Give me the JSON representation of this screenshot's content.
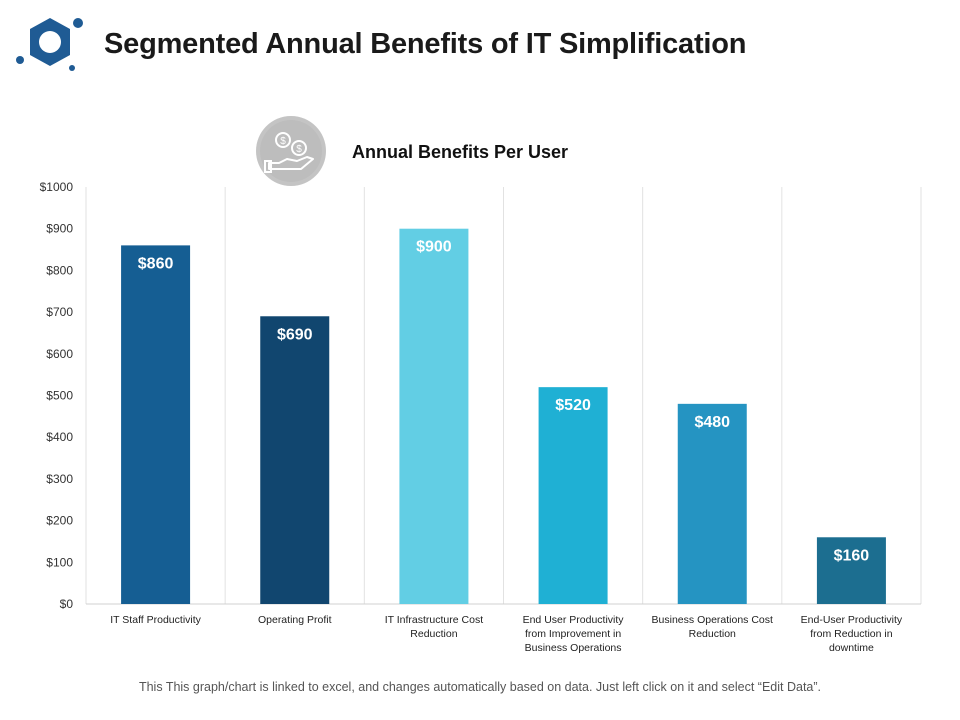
{
  "header": {
    "title": "Segmented Annual Benefits of IT Simplification"
  },
  "icons": {
    "logo": "hexagon-logo-icon",
    "subtitle_icon": "hand-coins-icon"
  },
  "footer": {
    "note": "This This graph/chart is linked to excel, and changes automatically based on data. Just left click on it and select “Edit Data”."
  },
  "chart_data": {
    "type": "bar",
    "title": "Annual Benefits Per User",
    "xlabel": "",
    "ylabel": "",
    "ylim": [
      0,
      1000
    ],
    "ytick_step": 100,
    "ytick_labels": [
      "$0",
      "$100",
      "$200",
      "$300",
      "$400",
      "$500",
      "$600",
      "$700",
      "$800",
      "$900",
      "$1000"
    ],
    "grid": "vertical",
    "categories": [
      [
        "IT Staff Productivity"
      ],
      [
        "Operating Profit"
      ],
      [
        "IT Infrastructure Cost",
        "Reduction"
      ],
      [
        "End User Productivity",
        "from Improvement in",
        "Business Operations"
      ],
      [
        "Business Operations Cost",
        "Reduction"
      ],
      [
        "End-User Productivity",
        "from Reduction in",
        "downtime"
      ]
    ],
    "values": [
      860,
      690,
      900,
      520,
      480,
      160
    ],
    "data_labels": [
      "$860",
      "$690",
      "$900",
      "$520",
      "$480",
      "$160"
    ],
    "colors": [
      "#155e93",
      "#11466f",
      "#62cee4",
      "#1fb0d4",
      "#2594c2",
      "#1c6e90"
    ]
  }
}
